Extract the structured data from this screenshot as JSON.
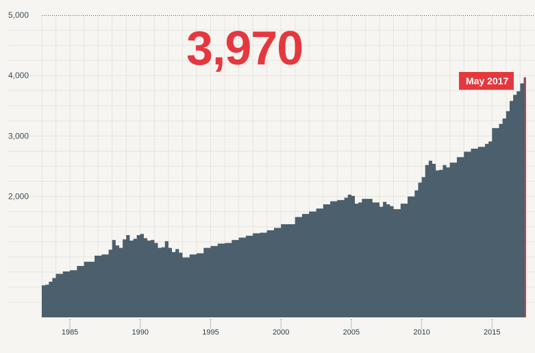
{
  "colors": {
    "background": "#f6f5f1",
    "grid": "#e6e4de",
    "area": "#4b5f6c",
    "highlight": "#e5383e",
    "axis_text": "#3e4d59",
    "top_rule": "#4b5f6c"
  },
  "headline_value": "3,970",
  "latest_label": "May 2017",
  "chart_data": {
    "type": "area",
    "title": "",
    "xlabel": "",
    "ylabel": "",
    "grid": true,
    "step": true,
    "xlim": [
      1983.0,
      2017.42
    ],
    "ylim": [
      0,
      5000
    ],
    "y_ticks": [
      {
        "value": 2000,
        "label": "2,000"
      },
      {
        "value": 3000,
        "label": "3,000"
      },
      {
        "value": 4000,
        "label": "4,000"
      },
      {
        "value": 5000,
        "label": "5,000"
      }
    ],
    "x_ticks": [
      {
        "value": 1985,
        "label": "1985"
      },
      {
        "value": 1990,
        "label": "1990"
      },
      {
        "value": 1995,
        "label": "1995"
      },
      {
        "value": 2000,
        "label": "2000"
      },
      {
        "value": 2005,
        "label": "2005"
      },
      {
        "value": 2010,
        "label": "2010"
      },
      {
        "value": 2015,
        "label": "2015"
      }
    ],
    "series": [
      {
        "x": [
          1983.0,
          1983.25,
          1983.5,
          1983.75,
          1984.0,
          1984.5,
          1985.0,
          1985.5,
          1986.0,
          1986.75,
          1987.25,
          1987.75,
          1988.0,
          1988.25,
          1988.5,
          1988.75,
          1989.0,
          1989.25,
          1989.5,
          1989.75,
          1990.0,
          1990.25,
          1990.5,
          1990.75,
          1991.0,
          1991.25,
          1991.5,
          1991.75,
          1992.0,
          1992.25,
          1992.5,
          1992.75,
          1993.0,
          1993.25,
          1993.5,
          1993.75,
          1994.0,
          1994.5,
          1995.0,
          1995.5,
          1996.0,
          1996.5,
          1997.0,
          1997.5,
          1998.0,
          1998.5,
          1999.0,
          1999.5,
          2000.0,
          2000.5,
          2001.0,
          2001.5,
          2002.0,
          2002.5,
          2003.0,
          2003.5,
          2004.0,
          2004.5,
          2004.75,
          2005.0,
          2005.25,
          2005.5,
          2005.75,
          2006.0,
          2006.5,
          2007.0,
          2007.25,
          2007.5,
          2007.75,
          2008.0,
          2008.5,
          2009.0,
          2009.5,
          2009.75,
          2010.0,
          2010.25,
          2010.5,
          2010.75,
          2011.0,
          2011.25,
          2011.5,
          2011.75,
          2012.0,
          2012.5,
          2013.0,
          2013.5,
          2014.0,
          2014.5,
          2014.75,
          2015.0,
          2015.5,
          2015.75,
          2016.0,
          2016.25,
          2016.5,
          2016.75,
          2017.0,
          2017.25,
          2017.42
        ],
        "values": [
          530,
          540,
          590,
          650,
          720,
          760,
          780,
          850,
          920,
          1020,
          1040,
          1120,
          1280,
          1190,
          1150,
          1290,
          1360,
          1270,
          1300,
          1360,
          1380,
          1310,
          1270,
          1280,
          1230,
          1150,
          1160,
          1260,
          1150,
          1080,
          1130,
          1070,
          990,
          990,
          1040,
          1040,
          1060,
          1150,
          1180,
          1220,
          1230,
          1280,
          1320,
          1350,
          1390,
          1400,
          1440,
          1480,
          1540,
          1540,
          1660,
          1710,
          1750,
          1800,
          1870,
          1920,
          1940,
          1980,
          2030,
          2010,
          1880,
          1900,
          1960,
          1960,
          1900,
          1830,
          1910,
          1870,
          1840,
          1790,
          1880,
          2000,
          2100,
          2230,
          2320,
          2520,
          2590,
          2540,
          2430,
          2440,
          2520,
          2480,
          2560,
          2650,
          2740,
          2790,
          2820,
          2870,
          2910,
          3130,
          3200,
          3290,
          3410,
          3580,
          3680,
          3740,
          3870,
          3970,
          3970
        ]
      }
    ]
  }
}
